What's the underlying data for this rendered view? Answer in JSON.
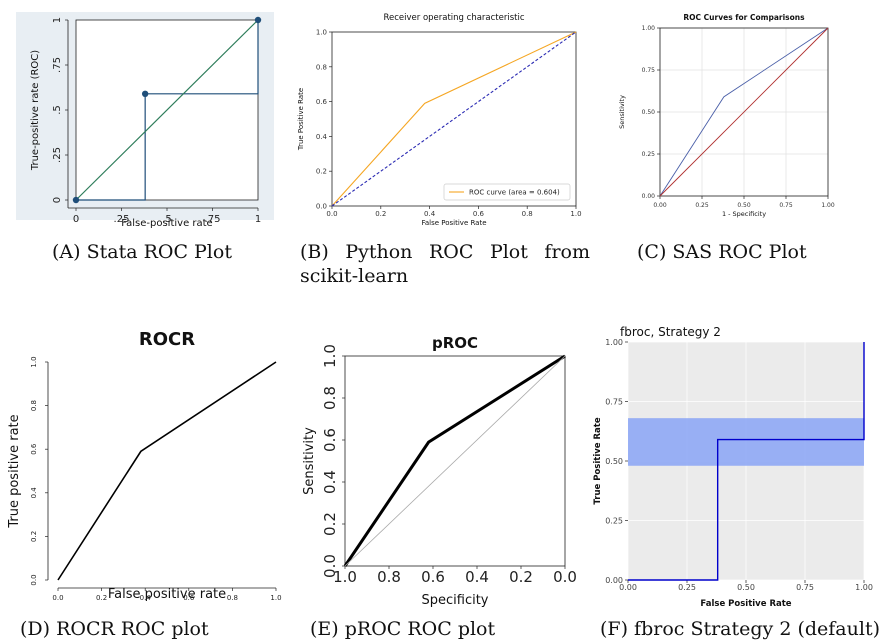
{
  "chart_data": [
    {
      "type": "line",
      "caption": "(A) Stata ROC Plot",
      "title": "",
      "xlabel": "False-positive rate",
      "ylabel": "True-positive rate (ROC)",
      "xlim": [
        0,
        1
      ],
      "ylim": [
        0,
        1
      ],
      "xticks": [
        0,
        0.25,
        0.5,
        0.75,
        1
      ],
      "xtick_labels": [
        "0",
        ".25",
        ".5",
        ".75",
        "1"
      ],
      "yticks": [
        0,
        0.25,
        0.5,
        0.75,
        1
      ],
      "ytick_labels": [
        "0",
        ".25",
        ".5",
        ".75",
        "1"
      ],
      "grid": false,
      "colors": {
        "curve": "#1f4e79",
        "diagonal": "#2e7d5b",
        "background": "#e8eef3"
      },
      "series": [
        {
          "role": "curve",
          "style": "step",
          "x": [
            0,
            0.38,
            0.38,
            1,
            1
          ],
          "y": [
            0,
            0,
            0.59,
            0.59,
            1
          ]
        },
        {
          "role": "diagonal",
          "x": [
            0,
            1
          ],
          "y": [
            0,
            1
          ]
        }
      ],
      "markers": {
        "x": [
          0,
          0.38,
          1
        ],
        "y": [
          0,
          0.59,
          1
        ]
      }
    },
    {
      "type": "line",
      "caption": "(B) Python ROC Plot from scikit-learn",
      "title": "Receiver operating characteristic",
      "xlabel": "False Positive Rate",
      "ylabel": "True Positive Rate",
      "xlim": [
        0,
        1
      ],
      "ylim": [
        0,
        1
      ],
      "xticks": [
        0,
        0.2,
        0.4,
        0.6,
        0.8,
        1
      ],
      "xtick_labels": [
        "0.0",
        "0.2",
        "0.4",
        "0.6",
        "0.8",
        "1.0"
      ],
      "yticks": [
        0,
        0.2,
        0.4,
        0.6,
        0.8,
        1
      ],
      "ytick_labels": [
        "0.0",
        "0.2",
        "0.4",
        "0.6",
        "0.8",
        "1.0"
      ],
      "grid": false,
      "legend": "bottom-right",
      "colors": {
        "curve": "#f5a623",
        "diagonal": "#2b2bb3"
      },
      "series": [
        {
          "name": "ROC curve (area = 0.604)",
          "role": "curve",
          "x": [
            0,
            0.38,
            1
          ],
          "y": [
            0,
            0.59,
            1
          ]
        },
        {
          "role": "diagonal",
          "style": "dashed",
          "x": [
            0,
            1
          ],
          "y": [
            0,
            1
          ]
        }
      ]
    },
    {
      "type": "line",
      "caption": "(C) SAS ROC Plot",
      "title": "ROC Curves for Comparisons",
      "xlabel": "1 - Specificity",
      "ylabel": "Sensitivity",
      "xlim": [
        0,
        1
      ],
      "ylim": [
        0,
        1
      ],
      "xticks": [
        0,
        0.25,
        0.5,
        0.75,
        1
      ],
      "xtick_labels": [
        "0.00",
        "0.25",
        "0.50",
        "0.75",
        "1.00"
      ],
      "yticks": [
        0,
        0.25,
        0.5,
        0.75,
        1
      ],
      "ytick_labels": [
        "0.00",
        "0.25",
        "0.50",
        "0.75",
        "1.00"
      ],
      "grid": true,
      "colors": {
        "curve": "#4a5fa8",
        "diagonal": "#b03030"
      },
      "series": [
        {
          "role": "curve",
          "x": [
            0,
            0.38,
            1
          ],
          "y": [
            0,
            0.59,
            1
          ]
        },
        {
          "role": "diagonal",
          "x": [
            0,
            1
          ],
          "y": [
            0,
            1
          ]
        }
      ]
    },
    {
      "type": "line",
      "caption": "(D) ROCR ROC plot",
      "title": "ROCR",
      "xlabel": "False positive rate",
      "ylabel": "True positive rate",
      "xlim": [
        0,
        1
      ],
      "ylim": [
        0,
        1
      ],
      "xticks": [
        0,
        0.2,
        0.4,
        0.6,
        0.8,
        1
      ],
      "xtick_labels": [
        "0.0",
        "0.2",
        "0.4",
        "0.6",
        "0.8",
        "1.0"
      ],
      "yticks": [
        0,
        0.2,
        0.4,
        0.6,
        0.8,
        1
      ],
      "ytick_labels": [
        "0.0",
        "0.2",
        "0.4",
        "0.6",
        "0.8",
        "1.0"
      ],
      "grid": false,
      "colors": {
        "curve": "#000000"
      },
      "series": [
        {
          "role": "curve",
          "x": [
            0,
            0.38,
            1
          ],
          "y": [
            0,
            0.59,
            1
          ]
        }
      ]
    },
    {
      "type": "line",
      "caption": "(E) pROC ROC plot",
      "title": "pROC",
      "xlabel": "Specificity",
      "ylabel": "Sensitivity",
      "xlim": [
        1,
        0
      ],
      "ylim": [
        0,
        1
      ],
      "xticks": [
        1,
        0.8,
        0.6,
        0.4,
        0.2,
        0
      ],
      "xtick_labels": [
        "1.0",
        "0.8",
        "0.6",
        "0.4",
        "0.2",
        "0.0"
      ],
      "yticks": [
        0,
        0.2,
        0.4,
        0.6,
        0.8,
        1
      ],
      "ytick_labels": [
        "0.0",
        "0.2",
        "0.4",
        "0.6",
        "0.8",
        "1.0"
      ],
      "grid": false,
      "colors": {
        "curve": "#000000",
        "diagonal": "#aaaaaa"
      },
      "series": [
        {
          "role": "curve",
          "x": [
            1,
            0.62,
            0
          ],
          "y": [
            0,
            0.59,
            1
          ]
        },
        {
          "role": "diagonal",
          "x": [
            1,
            0
          ],
          "y": [
            0,
            1
          ]
        }
      ]
    },
    {
      "type": "line",
      "caption": "(F) fbroc Strategy 2 (default)",
      "title": "fbroc, Strategy 2",
      "xlabel": "False Positive Rate",
      "ylabel": "True Positive Rate",
      "xlim": [
        0,
        1
      ],
      "ylim": [
        0,
        1
      ],
      "xticks": [
        0,
        0.25,
        0.5,
        0.75,
        1
      ],
      "xtick_labels": [
        "0.00",
        "0.25",
        "0.50",
        "0.75",
        "1.00"
      ],
      "yticks": [
        0,
        0.25,
        0.5,
        0.75,
        1
      ],
      "ytick_labels": [
        "0.00",
        "0.25",
        "0.50",
        "0.75",
        "1.00"
      ],
      "grid": true,
      "colors": {
        "curve": "#0000cc",
        "band": "#8fa8f5",
        "background": "#ebebeb"
      },
      "band": {
        "x": [
          0,
          1
        ],
        "y_low": 0.48,
        "y_high": 0.68
      },
      "series": [
        {
          "role": "curve",
          "style": "step",
          "x": [
            0,
            0.38,
            0.38,
            1,
            1
          ],
          "y": [
            0,
            0,
            0.59,
            0.59,
            1
          ]
        }
      ]
    }
  ]
}
